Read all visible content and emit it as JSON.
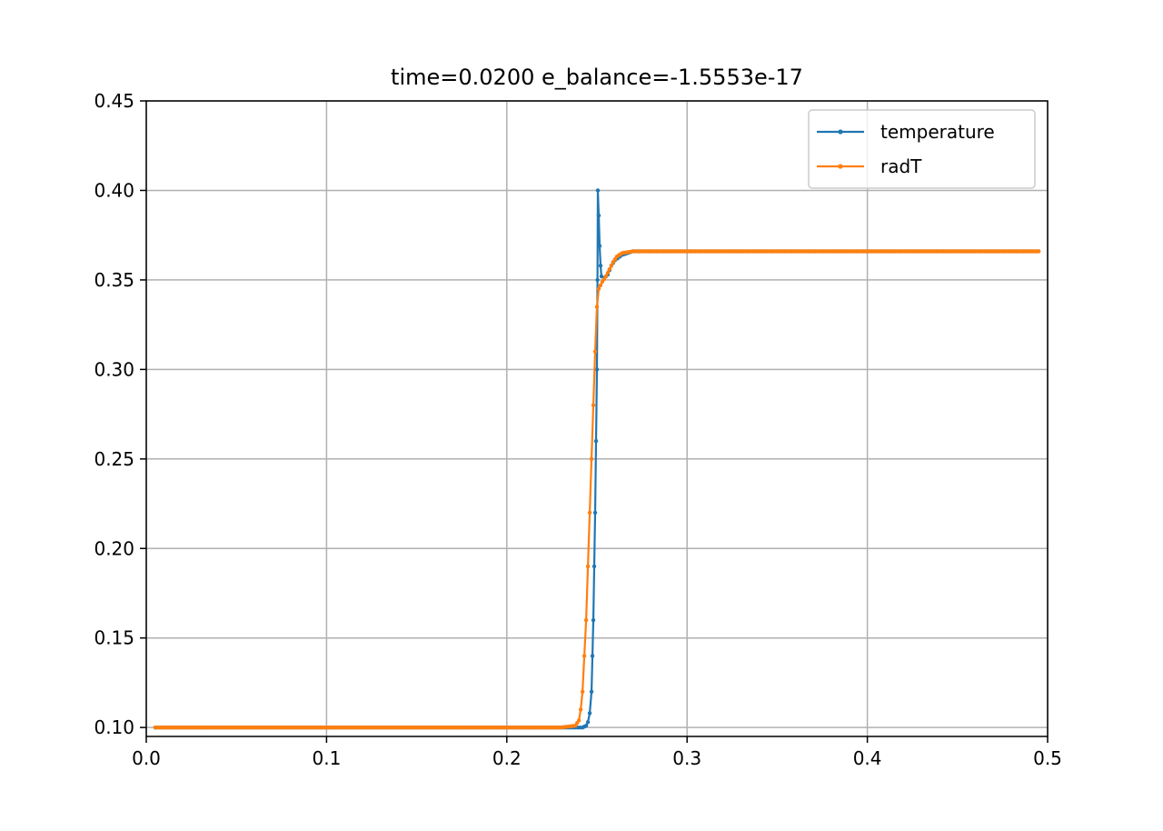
{
  "chart_data": {
    "type": "line",
    "title": "time=0.0200 e_balance=-1.5553e-17",
    "xlabel": "",
    "ylabel": "",
    "xlim": [
      0.0,
      0.5
    ],
    "ylim": [
      0.095,
      0.45
    ],
    "x_ticks": [
      "0.0",
      "0.1",
      "0.2",
      "0.3",
      "0.4",
      "0.5"
    ],
    "y_ticks": [
      "0.10",
      "0.15",
      "0.20",
      "0.25",
      "0.30",
      "0.35",
      "0.40",
      "0.45"
    ],
    "grid": true,
    "legend_position": "top-right",
    "series": [
      {
        "name": "temperature",
        "color": "#1f77b4",
        "marker": "dot",
        "points": [
          [
            0.005,
            0.1
          ],
          [
            0.1,
            0.1
          ],
          [
            0.2,
            0.1
          ],
          [
            0.238,
            0.1
          ],
          [
            0.242,
            0.1
          ],
          [
            0.244,
            0.101
          ],
          [
            0.245,
            0.103
          ],
          [
            0.246,
            0.108
          ],
          [
            0.247,
            0.12
          ],
          [
            0.2475,
            0.14
          ],
          [
            0.248,
            0.16
          ],
          [
            0.2485,
            0.19
          ],
          [
            0.249,
            0.22
          ],
          [
            0.2495,
            0.26
          ],
          [
            0.25,
            0.3
          ],
          [
            0.2503,
            0.35
          ],
          [
            0.2505,
            0.4
          ],
          [
            0.251,
            0.386
          ],
          [
            0.2515,
            0.369
          ],
          [
            0.252,
            0.358
          ],
          [
            0.2525,
            0.352
          ],
          [
            0.254,
            0.351
          ],
          [
            0.256,
            0.353
          ],
          [
            0.258,
            0.358
          ],
          [
            0.26,
            0.361
          ],
          [
            0.264,
            0.364
          ],
          [
            0.27,
            0.366
          ],
          [
            0.3,
            0.366
          ],
          [
            0.4,
            0.366
          ],
          [
            0.495,
            0.366
          ]
        ]
      },
      {
        "name": "radT",
        "color": "#ff7f0e",
        "marker": "dot",
        "points": [
          [
            0.005,
            0.1
          ],
          [
            0.1,
            0.1
          ],
          [
            0.2,
            0.1
          ],
          [
            0.21,
            0.1
          ],
          [
            0.23,
            0.1
          ],
          [
            0.238,
            0.101
          ],
          [
            0.24,
            0.104
          ],
          [
            0.241,
            0.11
          ],
          [
            0.242,
            0.12
          ],
          [
            0.243,
            0.14
          ],
          [
            0.244,
            0.16
          ],
          [
            0.245,
            0.19
          ],
          [
            0.246,
            0.22
          ],
          [
            0.247,
            0.25
          ],
          [
            0.248,
            0.28
          ],
          [
            0.249,
            0.31
          ],
          [
            0.25,
            0.335
          ],
          [
            0.251,
            0.345
          ],
          [
            0.253,
            0.349
          ],
          [
            0.255,
            0.352
          ],
          [
            0.257,
            0.356
          ],
          [
            0.259,
            0.36
          ],
          [
            0.261,
            0.363
          ],
          [
            0.264,
            0.365
          ],
          [
            0.27,
            0.366
          ],
          [
            0.3,
            0.366
          ],
          [
            0.4,
            0.366
          ],
          [
            0.495,
            0.366
          ]
        ]
      }
    ]
  }
}
